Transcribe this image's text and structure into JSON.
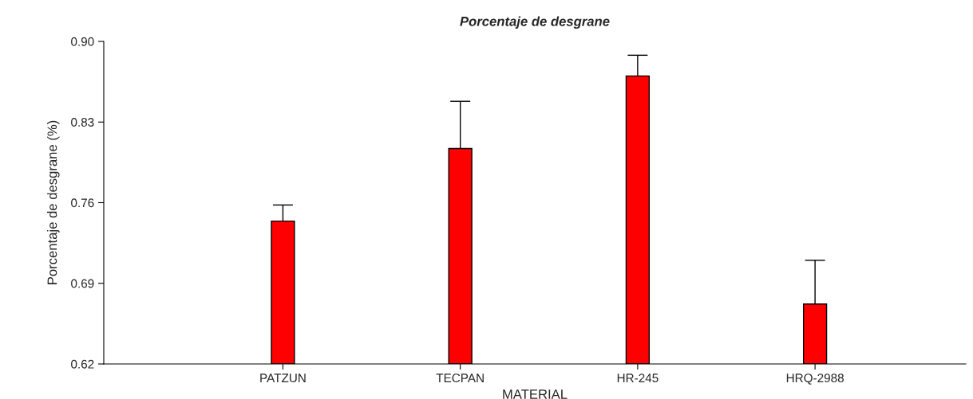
{
  "chart_data": {
    "type": "bar",
    "title": "Porcentaje de desgrane",
    "xlabel": "MATERIAL",
    "ylabel": "Porcentaje de desgrane (%)",
    "categories": [
      "PATZUN",
      "TECPAN",
      "HR-245",
      "HRQ-2988"
    ],
    "values": [
      0.744,
      0.807,
      0.87,
      0.672
    ],
    "errors": [
      0.014,
      0.041,
      0.018,
      0.038
    ],
    "color": "#ff0000",
    "ylim": [
      0.62,
      0.9
    ],
    "yticks": [
      {
        "value": 0.62,
        "label": "0.62"
      },
      {
        "value": 0.69,
        "label": "0.69"
      },
      {
        "value": 0.76,
        "label": "0.76"
      },
      {
        "value": 0.83,
        "label": "0.83"
      },
      {
        "value": 0.9,
        "label": "0.90"
      }
    ],
    "grid": false,
    "legend": false
  }
}
